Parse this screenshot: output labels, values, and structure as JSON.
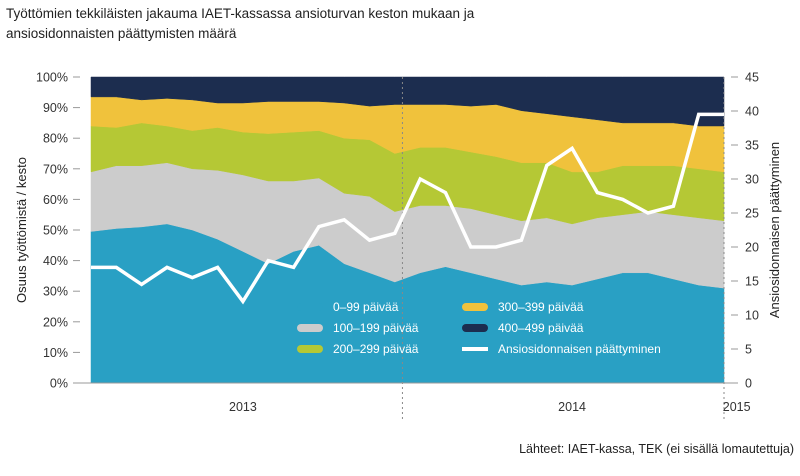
{
  "chart_data": {
    "type": "area",
    "title_line1": "Työttömien tekkiläisten jakauma IAET-kassassa ansioturvan keston mukaan ja",
    "title_line2": "ansiosidonnaisten päättymisten määrä",
    "ylabel_left": "Osuus työttömistä / kesto",
    "ylabel_right": "Ansiosidonnaisen päättyminen",
    "source": "Lähteet: IAET-kassa, TEK (ei sisällä lomautettuja)",
    "ylim_left": [
      0,
      100
    ],
    "ylim_right": [
      0,
      45
    ],
    "left_ticks": [
      "0%",
      "10%",
      "20%",
      "30%",
      "40%",
      "50%",
      "60%",
      "70%",
      "80%",
      "90%",
      "100%"
    ],
    "right_ticks": [
      "0",
      "5",
      "10",
      "15",
      "20",
      "25",
      "30",
      "35",
      "40",
      "45"
    ],
    "x_labels": [
      {
        "label": "2013",
        "at": 6
      },
      {
        "label": "2014",
        "at": 19
      },
      {
        "label": "2015",
        "at": 25.5
      }
    ],
    "year_separators": [
      12.3,
      25.0
    ],
    "n_points": 26,
    "stack_series": [
      {
        "name": "0–99 päivää",
        "color": "#29a0c4",
        "values": [
          49.5,
          50.5,
          51,
          52,
          50,
          47,
          43,
          39,
          43,
          45,
          39,
          36,
          33,
          36,
          38,
          36,
          34,
          32,
          33,
          32,
          34,
          36,
          36,
          34,
          32,
          31
        ]
      },
      {
        "name": "100–199 päivää",
        "color": "#cccccc",
        "values": [
          19.5,
          20.5,
          20,
          20,
          20,
          22.5,
          25,
          27,
          23,
          22,
          23,
          25,
          23,
          22,
          20,
          21,
          21,
          21,
          21,
          20,
          20,
          19,
          20,
          21,
          22,
          22
        ]
      },
      {
        "name": "200–299 päivää",
        "color": "#b5c835",
        "values": [
          15,
          12.5,
          14,
          12,
          12.5,
          14,
          14,
          15.5,
          16,
          15.5,
          18,
          18.5,
          19,
          19,
          19,
          18.5,
          19,
          19,
          18,
          17,
          15,
          16,
          15,
          16,
          16,
          16
        ]
      },
      {
        "name": "300–399 päivää",
        "color": "#f0c23c",
        "values": [
          9.5,
          10,
          7.5,
          9,
          10,
          8,
          9.5,
          10.5,
          10,
          9.5,
          11.5,
          11,
          16,
          14,
          14,
          15,
          17,
          17,
          16,
          18,
          17,
          14,
          14,
          14,
          14,
          15
        ]
      },
      {
        "name": "400–499 päivää",
        "color": "#1c2d4f",
        "values": [
          6.5,
          6.5,
          7.5,
          7,
          7.5,
          8.5,
          8.5,
          8,
          8,
          8,
          8.5,
          9.5,
          9,
          9,
          9,
          9.5,
          9,
          11,
          12,
          13,
          14,
          15,
          15,
          15,
          16,
          16
        ]
      }
    ],
    "line_series": {
      "name": "Ansiosidonnaisen päättyminen",
      "color": "#ffffff",
      "values": [
        17,
        17,
        14.5,
        17,
        15.5,
        17,
        12,
        18,
        17,
        23,
        24,
        21,
        22,
        30,
        28,
        20,
        20,
        21,
        32,
        34.5,
        28,
        27,
        25,
        26,
        39.5,
        39.5
      ]
    },
    "legend": [
      {
        "label": "0–99 päivää",
        "color": "#29a0c4",
        "kind": "swatch"
      },
      {
        "label": "300–399 päivää",
        "color": "#f0c23c",
        "kind": "swatch"
      },
      {
        "label": "100–199 päivää",
        "color": "#cccccc",
        "kind": "swatch"
      },
      {
        "label": "400–499 päivää",
        "color": "#1c2d4f",
        "kind": "swatch"
      },
      {
        "label": "200–299 päivää",
        "color": "#b5c835",
        "kind": "swatch"
      },
      {
        "label": "Ansiosidonnaisen päättyminen",
        "color": "#ffffff",
        "kind": "line"
      }
    ],
    "legend_position": "inside-bottom-center",
    "grid": false
  }
}
